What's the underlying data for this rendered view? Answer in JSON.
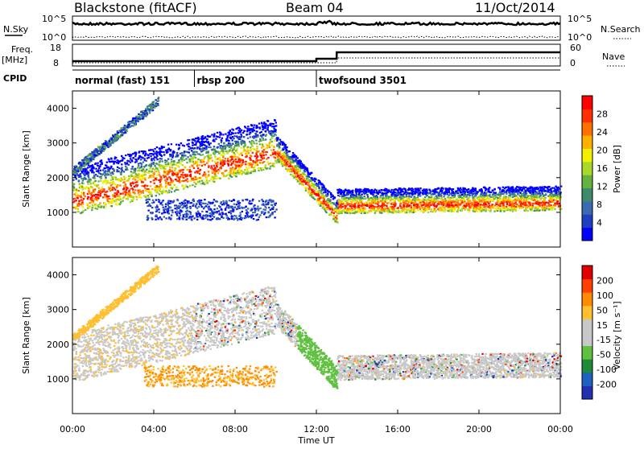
{
  "header": {
    "station": "Blackstone (fitACF)",
    "beam": "Beam 04",
    "date": "11/Oct/2014"
  },
  "colors": {
    "power_scale": [
      "#0000ff",
      "#1f3fc0",
      "#3a6ab0",
      "#3f8a6a",
      "#66b23f",
      "#a8d82a",
      "#f0f000",
      "#ffb000",
      "#ff7000",
      "#ff3000",
      "#ff0000"
    ],
    "velocity_scale": [
      "#2030b0",
      "#2060c0",
      "#1f8a3a",
      "#60c040",
      "#c8c8c8",
      "#c8c8c8",
      "#ffbf30",
      "#ff8c00",
      "#ff4000",
      "#e00000"
    ]
  },
  "chart_data": [
    {
      "type": "line",
      "panel": "noise",
      "left_label": "N.Sky",
      "right_label": "N.Search",
      "left_ticks": [
        "10^5",
        "10^0"
      ],
      "right_ticks": [
        "10^5",
        "10^0"
      ]
    },
    {
      "type": "line",
      "panel": "frequency",
      "left_label": "Freq.",
      "left_unit": "[MHz]",
      "right_label": "Nave",
      "left_ticks": [
        "18",
        "8"
      ],
      "right_ticks": [
        "60",
        "0"
      ]
    },
    {
      "type": "table",
      "panel": "cpid",
      "label": "CPID",
      "modes": [
        {
          "name": "normal (fast) 151",
          "start_hour": 0
        },
        {
          "name": "rbsp 200",
          "start_hour": 6
        },
        {
          "name": "twofsound 3501",
          "start_hour": 12
        }
      ]
    },
    {
      "type": "heatmap",
      "panel": "power",
      "ylabel": "Slant Range [km]",
      "ylim": [
        0,
        4500
      ],
      "yticks": [
        1000,
        2000,
        3000,
        4000
      ],
      "colorbar": {
        "label": "Power [dB]",
        "ticks": [
          "28",
          "24",
          "20",
          "16",
          "12",
          "8",
          "4"
        ]
      }
    },
    {
      "type": "heatmap",
      "panel": "velocity",
      "ylabel": "Slant Range [km]",
      "ylim": [
        0,
        4500
      ],
      "yticks": [
        1000,
        2000,
        3000,
        4000
      ],
      "colorbar": {
        "label": "Velocity [m s⁻¹]",
        "ticks": [
          "200",
          "100",
          "50",
          "15",
          "-15",
          "-50",
          "-100",
          "-200"
        ]
      },
      "xlabel": "Time UT",
      "xticks": [
        "00:00",
        "04:00",
        "08:00",
        "12:00",
        "16:00",
        "20:00",
        "00:00"
      ],
      "xlim": [
        0,
        24
      ]
    }
  ]
}
